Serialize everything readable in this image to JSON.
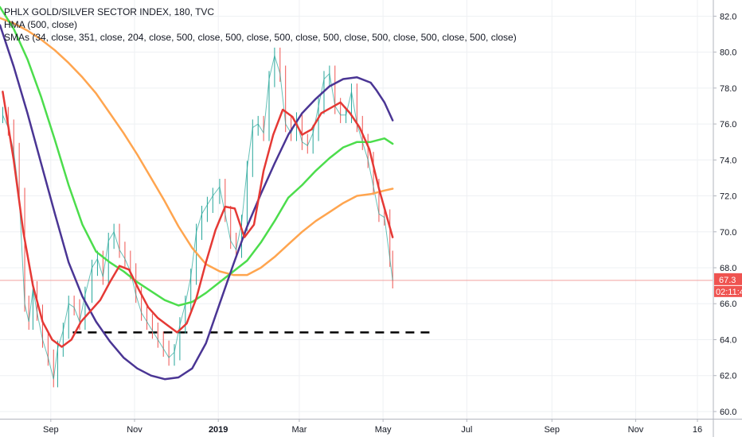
{
  "header": {
    "title": "PHLX GOLD/SILVER SECTOR INDEX, 180, TVC",
    "hma_label": "HMA (500, close)",
    "smas_label": "SMAs (34, close, 351, close, 204, close, 500, close, 500, close, 500, close, 500, close, 500, close, 500, close, 500, close)"
  },
  "price_tag": {
    "last_price": "67.3",
    "countdown": "02:11:4",
    "color": "#ef5350"
  },
  "colors": {
    "price": "#26a69a",
    "price_down": "#ef5350",
    "red_sma": "#e53935",
    "green_sma": "#4cdd4c",
    "orange_sma": "#ffa54f",
    "hma": "#4a3594",
    "support_line": "#000000",
    "last_price_line": "#f3a19f",
    "grid": "#eef0f3"
  },
  "chart_data": {
    "type": "line",
    "title": "PHLX GOLD/SILVER SECTOR INDEX, 180, TVC",
    "ylim": [
      59.6,
      82.9
    ],
    "y_ticks": [
      60.0,
      62.0,
      64.0,
      66.0,
      68.0,
      70.0,
      72.0,
      74.0,
      76.0,
      78.0,
      80.0,
      82.0
    ],
    "y_tick_labels": [
      "60.0",
      "62.0",
      "64.0",
      "66.0",
      "68.0",
      "70.0",
      "72.0",
      "74.0",
      "76.0",
      "78.0",
      "80.0",
      "82.0"
    ],
    "x_range": [
      "2018-07-26",
      "2019-12-27"
    ],
    "x_ticks": [
      {
        "label": "Sep",
        "date": "2018-09-01",
        "bold": false
      },
      {
        "label": "Nov",
        "date": "2018-11-01",
        "bold": false
      },
      {
        "label": "2019",
        "date": "2019-01-01",
        "bold": true
      },
      {
        "label": "Mar",
        "date": "2019-03-01",
        "bold": false
      },
      {
        "label": "May",
        "date": "2019-05-01",
        "bold": false
      },
      {
        "label": "Jul",
        "date": "2019-07-01",
        "bold": false
      },
      {
        "label": "Sep",
        "date": "2019-09-01",
        "bold": false
      },
      {
        "label": "Nov",
        "date": "2019-11-01",
        "bold": false
      },
      {
        "label": "16",
        "date": "2019-12-16",
        "bold": false
      }
    ],
    "grid": true,
    "legend": "top-left",
    "last_price": 67.3,
    "support_level": 64.4,
    "support_range": [
      "2018-09-17",
      "2019-06-04"
    ],
    "series": [
      {
        "name": "",
        "style": "price",
        "x": [
          "2018-07-28",
          "2018-08-01",
          "2018-08-05",
          "2018-08-09",
          "2018-08-13",
          "2018-08-16",
          "2018-08-19",
          "2018-08-22",
          "2018-08-26",
          "2018-08-30",
          "2018-09-03",
          "2018-09-06",
          "2018-09-10",
          "2018-09-14",
          "2018-09-18",
          "2018-09-22",
          "2018-09-26",
          "2018-10-01",
          "2018-10-05",
          "2018-10-09",
          "2018-10-13",
          "2018-10-17",
          "2018-10-21",
          "2018-10-25",
          "2018-10-29",
          "2018-11-02",
          "2018-11-06",
          "2018-11-10",
          "2018-11-14",
          "2018-11-18",
          "2018-11-22",
          "2018-11-26",
          "2018-11-30",
          "2018-12-04",
          "2018-12-08",
          "2018-12-12",
          "2018-12-16",
          "2018-12-20",
          "2018-12-24",
          "2018-12-28",
          "2019-01-02",
          "2019-01-06",
          "2019-01-10",
          "2019-01-14",
          "2019-01-18",
          "2019-01-22",
          "2019-01-26",
          "2019-01-30",
          "2019-02-03",
          "2019-02-07",
          "2019-02-11",
          "2019-02-15",
          "2019-02-19",
          "2019-02-23",
          "2019-02-27",
          "2019-03-03",
          "2019-03-07",
          "2019-03-11",
          "2019-03-15",
          "2019-03-19",
          "2019-03-23",
          "2019-03-27",
          "2019-03-31",
          "2019-04-04",
          "2019-04-08",
          "2019-04-12",
          "2019-04-16",
          "2019-04-20",
          "2019-04-24",
          "2019-04-28",
          "2019-05-02",
          "2019-05-06",
          "2019-05-08"
        ],
        "values": [
          76.5,
          75.8,
          74.5,
          72.0,
          66.0,
          65.0,
          66.8,
          65.5,
          64.0,
          63.0,
          61.8,
          63.5,
          64.5,
          66.0,
          65.8,
          65.0,
          66.5,
          68.0,
          68.5,
          67.5,
          69.5,
          70.0,
          69.0,
          68.5,
          67.8,
          66.5,
          65.5,
          65.0,
          64.5,
          64.0,
          63.5,
          63.0,
          63.3,
          64.8,
          66.0,
          67.5,
          70.0,
          71.0,
          71.5,
          72.0,
          72.5,
          71.0,
          69.5,
          69.0,
          70.5,
          73.5,
          75.8,
          76.0,
          75.5,
          78.5,
          79.8,
          78.8,
          76.0,
          75.5,
          76.2,
          75.0,
          74.8,
          75.5,
          77.0,
          78.5,
          78.8,
          77.0,
          76.5,
          76.5,
          77.8,
          76.0,
          75.0,
          74.0,
          72.5,
          71.0,
          70.8,
          68.5,
          67.3
        ]
      },
      {
        "name": "",
        "style": "red_sma",
        "x": [
          "2018-07-28",
          "2018-08-05",
          "2018-08-12",
          "2018-08-19",
          "2018-08-26",
          "2018-09-02",
          "2018-09-09",
          "2018-09-16",
          "2018-09-23",
          "2018-09-30",
          "2018-10-07",
          "2018-10-14",
          "2018-10-21",
          "2018-10-28",
          "2018-11-04",
          "2018-11-11",
          "2018-11-18",
          "2018-11-25",
          "2018-12-02",
          "2018-12-09",
          "2018-12-16",
          "2018-12-23",
          "2018-12-30",
          "2019-01-06",
          "2019-01-13",
          "2019-01-20",
          "2019-01-27",
          "2019-02-03",
          "2019-02-10",
          "2019-02-17",
          "2019-02-24",
          "2019-03-03",
          "2019-03-10",
          "2019-03-17",
          "2019-03-24",
          "2019-03-31",
          "2019-04-07",
          "2019-04-14",
          "2019-04-21",
          "2019-04-28",
          "2019-05-08"
        ],
        "values": [
          77.8,
          74.0,
          70.0,
          67.0,
          65.0,
          64.0,
          63.6,
          64.0,
          65.0,
          65.6,
          66.2,
          67.2,
          68.1,
          67.9,
          66.8,
          65.8,
          65.2,
          64.8,
          64.4,
          64.9,
          66.3,
          68.3,
          70.1,
          71.4,
          71.3,
          69.7,
          70.4,
          73.4,
          75.4,
          76.8,
          76.4,
          75.4,
          75.7,
          76.6,
          76.9,
          77.2,
          76.6,
          75.8,
          74.6,
          72.4,
          69.7
        ]
      },
      {
        "name": "",
        "style": "green_sma",
        "x": [
          "2018-07-26",
          "2018-08-05",
          "2018-08-15",
          "2018-08-25",
          "2018-09-04",
          "2018-09-14",
          "2018-09-24",
          "2018-10-04",
          "2018-10-14",
          "2018-10-24",
          "2018-11-03",
          "2018-11-13",
          "2018-11-23",
          "2018-12-03",
          "2018-12-13",
          "2018-12-23",
          "2019-01-02",
          "2019-01-12",
          "2019-01-22",
          "2019-02-01",
          "2019-02-11",
          "2019-02-21",
          "2019-03-03",
          "2019-03-13",
          "2019-03-23",
          "2019-04-02",
          "2019-04-12",
          "2019-04-22",
          "2019-05-02",
          "2019-05-08"
        ],
        "values": [
          82.5,
          81.3,
          79.6,
          77.5,
          75.1,
          72.6,
          70.4,
          68.9,
          68.3,
          67.8,
          67.2,
          66.7,
          66.2,
          65.9,
          66.1,
          66.6,
          67.2,
          67.8,
          68.4,
          69.4,
          70.6,
          71.9,
          72.6,
          73.4,
          74.1,
          74.7,
          75.0,
          75.0,
          75.2,
          74.9
        ]
      },
      {
        "name": "",
        "style": "orange_sma",
        "x": [
          "2018-07-26",
          "2018-08-05",
          "2018-08-15",
          "2018-08-25",
          "2018-09-04",
          "2018-09-14",
          "2018-09-24",
          "2018-10-04",
          "2018-10-14",
          "2018-10-24",
          "2018-11-03",
          "2018-11-13",
          "2018-11-23",
          "2018-12-03",
          "2018-12-13",
          "2018-12-23",
          "2019-01-02",
          "2019-01-12",
          "2019-01-22",
          "2019-02-01",
          "2019-02-11",
          "2019-02-21",
          "2019-03-03",
          "2019-03-13",
          "2019-03-23",
          "2019-04-02",
          "2019-04-12",
          "2019-04-22",
          "2019-05-02",
          "2019-05-08"
        ],
        "values": [
          81.9,
          81.6,
          81.2,
          80.7,
          80.1,
          79.4,
          78.6,
          77.7,
          76.6,
          75.5,
          74.3,
          73.0,
          71.7,
          70.3,
          69.1,
          68.2,
          67.8,
          67.6,
          67.6,
          68.0,
          68.6,
          69.3,
          70.0,
          70.6,
          71.1,
          71.6,
          72.0,
          72.1,
          72.3,
          72.4
        ]
      },
      {
        "name": "",
        "style": "hma",
        "x": [
          "2018-07-26",
          "2018-08-05",
          "2018-08-15",
          "2018-08-25",
          "2018-09-04",
          "2018-09-14",
          "2018-09-24",
          "2018-10-04",
          "2018-10-14",
          "2018-10-24",
          "2018-11-03",
          "2018-11-13",
          "2018-11-23",
          "2018-12-03",
          "2018-12-13",
          "2018-12-23",
          "2019-01-02",
          "2019-01-12",
          "2019-01-22",
          "2019-02-01",
          "2019-02-11",
          "2019-02-21",
          "2019-03-03",
          "2019-03-13",
          "2019-03-23",
          "2019-04-02",
          "2019-04-12",
          "2019-04-22",
          "2019-04-26",
          "2019-05-02",
          "2019-05-08"
        ],
        "values": [
          81.5,
          79.2,
          76.6,
          73.8,
          71.0,
          68.3,
          66.4,
          65.0,
          63.9,
          63.0,
          62.4,
          62.0,
          61.8,
          61.9,
          62.4,
          63.8,
          66.0,
          68.2,
          70.3,
          72.1,
          73.8,
          75.4,
          76.6,
          77.4,
          78.1,
          78.5,
          78.6,
          78.3,
          77.9,
          77.2,
          76.2
        ]
      }
    ]
  }
}
